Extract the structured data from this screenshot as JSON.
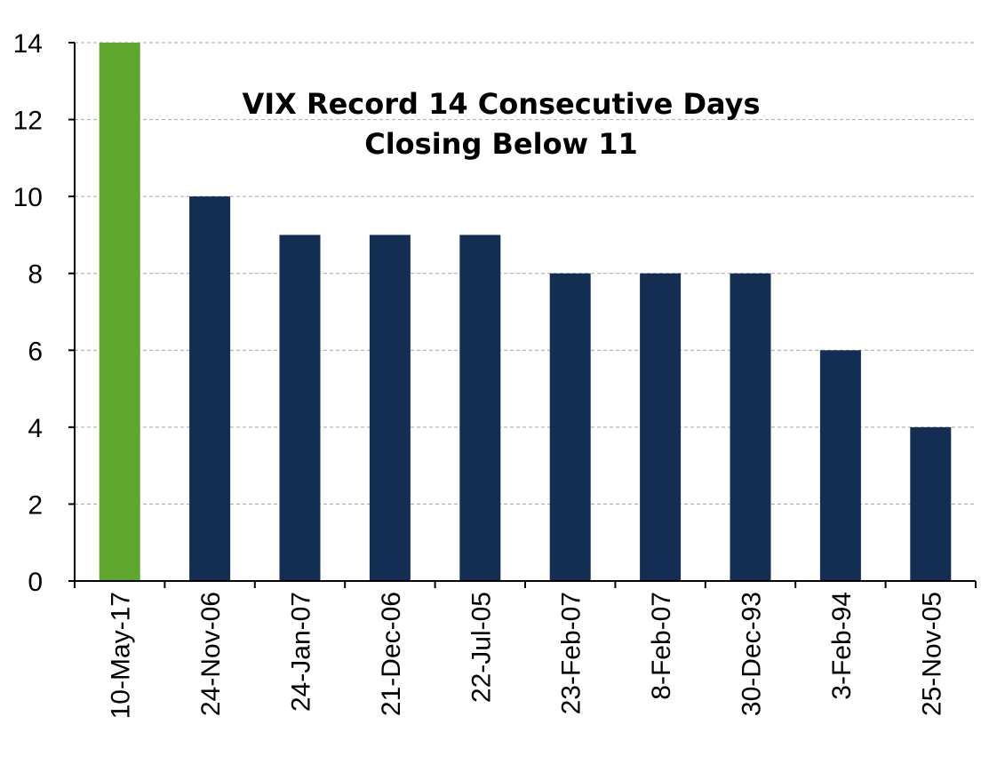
{
  "chart_data": {
    "type": "bar",
    "title_lines": [
      "VIX Record 14 Consecutive Days",
      "Closing Below 11"
    ],
    "xlabel": "",
    "ylabel": "",
    "categories": [
      "10-May-17",
      "24-Nov-06",
      "24-Jan-07",
      "21-Dec-06",
      "22-Jul-05",
      "23-Feb-07",
      "8-Feb-07",
      "30-Dec-93",
      "3-Feb-94",
      "25-Nov-05"
    ],
    "values": [
      14,
      10,
      9,
      9,
      9,
      8,
      8,
      8,
      6,
      4
    ],
    "ylim": [
      0,
      14
    ],
    "yticks": [
      0,
      2,
      4,
      6,
      8,
      10,
      12,
      14
    ],
    "grid": true,
    "legend": "none",
    "colors": {
      "highlight": "#5ea62c",
      "bar": "#142d52",
      "grid": "#a6a6a6",
      "axis": "#000000"
    },
    "highlight_index": 0
  }
}
